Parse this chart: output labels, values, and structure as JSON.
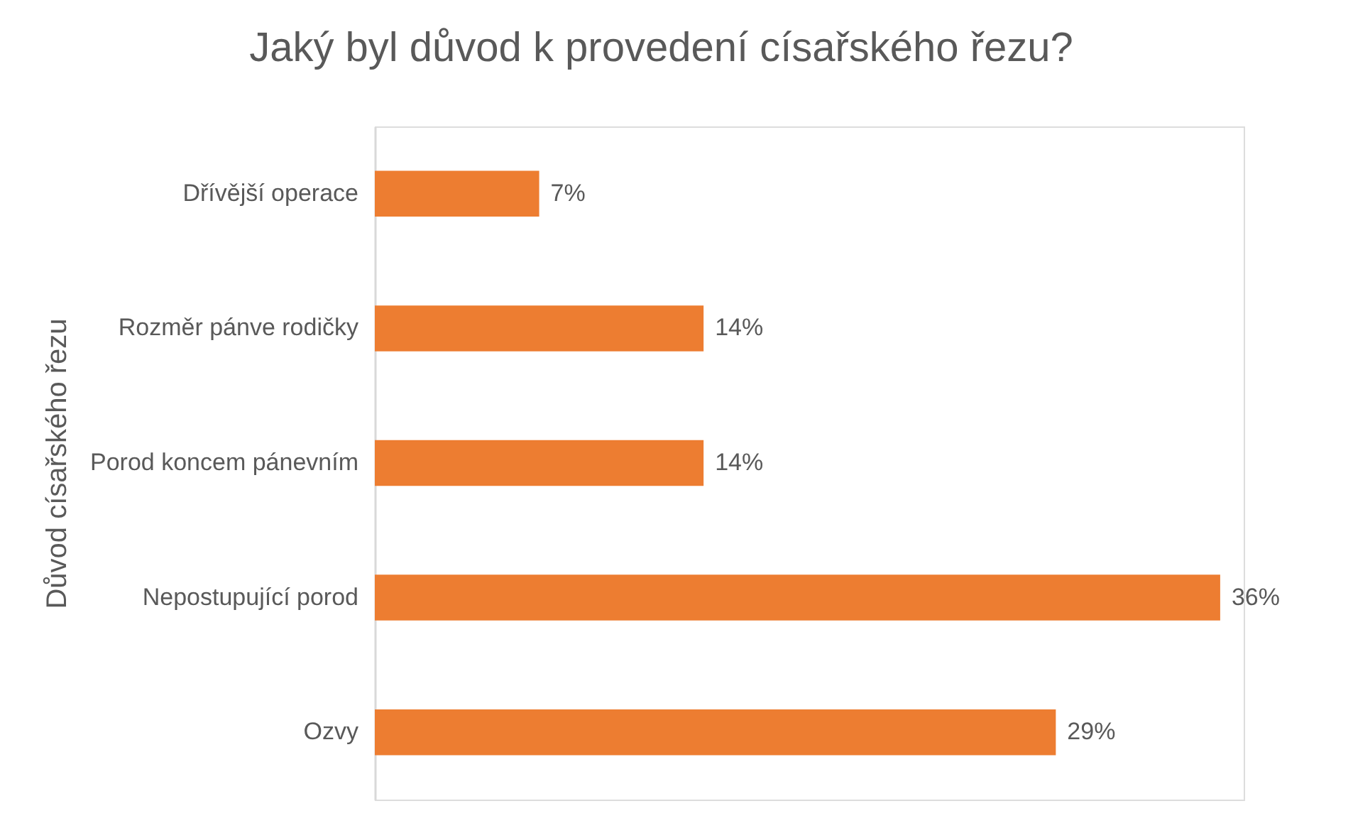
{
  "chart_data": {
    "type": "bar",
    "orientation": "horizontal",
    "title": "Jaký byl důvod k provedení císařského řezu?",
    "ylabel": "Důvod císařského řezu",
    "categories": [
      "Dřívější operace",
      "Rozměr pánve rodičky",
      "Porod koncem pánevním",
      "Nepostupující porod",
      "Ozvy"
    ],
    "values": [
      7,
      14,
      14,
      36,
      29
    ],
    "value_labels": [
      "7%",
      "14%",
      "14%",
      "36%",
      "29%"
    ],
    "color": "#ed7d31",
    "xlim": [
      0,
      37
    ],
    "tick_labels": "y",
    "grid": false
  }
}
